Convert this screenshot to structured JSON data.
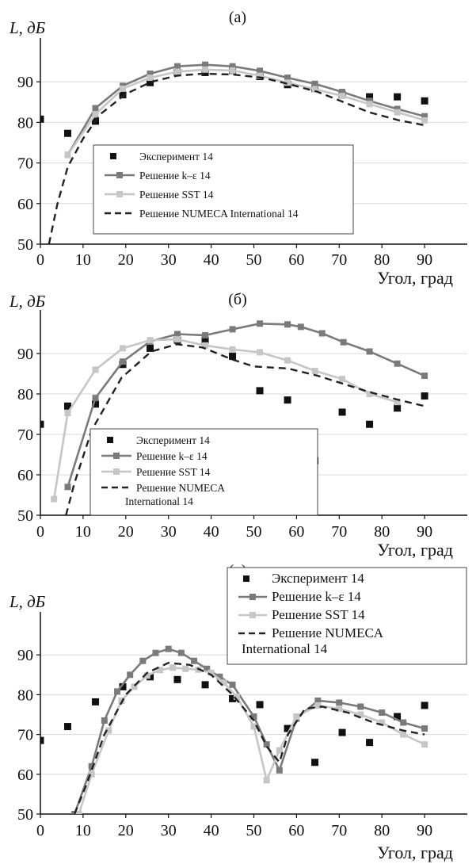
{
  "chart_data": [
    {
      "type": "line",
      "title": "(а)",
      "ylabel": "L, дБ",
      "xlabel": "Угол, град",
      "xlim": [
        0,
        100
      ],
      "ylim": [
        50,
        100
      ],
      "xticks": [
        0,
        10,
        20,
        30,
        40,
        50,
        60,
        70,
        80,
        90
      ],
      "yticks": [
        50,
        60,
        70,
        80,
        90
      ],
      "grid": true,
      "legend_position": "bottom-center",
      "series": [
        {
          "name": "Эксперимент 14",
          "kind": "markers",
          "color": "#111111",
          "x": [
            0,
            6.4,
            12.9,
            19.3,
            25.7,
            32.1,
            38.6,
            45,
            51.4,
            57.9,
            64.3,
            70.7,
            77.1,
            83.6,
            90
          ],
          "y": [
            80.8,
            77.3,
            80.3,
            86.8,
            89.8,
            92.3,
            92.3,
            92.8,
            91.3,
            89.3,
            88.3,
            86.8,
            86.3,
            86.3,
            85.3
          ]
        },
        {
          "name": "Решение k–ε 14",
          "kind": "line-markers",
          "color": "#7a7a7a",
          "x": [
            6.4,
            12.9,
            19.3,
            25.7,
            32.1,
            38.6,
            45,
            51.4,
            57.9,
            64.3,
            70.7,
            77.1,
            83.6,
            90
          ],
          "y": [
            72,
            83.5,
            89,
            92,
            93.8,
            94.2,
            93.8,
            92.7,
            91,
            89.5,
            87.5,
            85.3,
            83.3,
            81.5
          ]
        },
        {
          "name": "Решение SST 14",
          "kind": "line-markers",
          "color": "#c6c6c6",
          "x": [
            6.4,
            12.9,
            19.3,
            25.7,
            32.1,
            38.6,
            45,
            51.4,
            57.9,
            64.3,
            70.7,
            77.1,
            83.6,
            90
          ],
          "y": [
            72,
            82,
            88.3,
            91,
            92.5,
            93,
            92.8,
            91.5,
            89.8,
            88.2,
            86.5,
            84.5,
            82.5,
            80.5
          ]
        },
        {
          "name": "Решение NUMECA International 14",
          "kind": "dashed",
          "color": "#222222",
          "x": [
            2,
            4,
            6.4,
            10,
            14,
            20,
            26,
            32,
            38,
            45,
            52,
            58,
            65,
            71,
            77,
            84,
            90
          ],
          "y": [
            50,
            60,
            69,
            76,
            82,
            87,
            90,
            91.5,
            92,
            91.8,
            91,
            89.5,
            87.5,
            85,
            82.5,
            80.5,
            79.3
          ]
        }
      ]
    },
    {
      "type": "line",
      "title": "(б)",
      "ylabel": "L, дБ",
      "xlabel": "Угол, град",
      "xlim": [
        0,
        100
      ],
      "ylim": [
        50,
        100
      ],
      "xticks": [
        0,
        10,
        20,
        30,
        40,
        50,
        60,
        70,
        80,
        90
      ],
      "yticks": [
        50,
        60,
        70,
        80,
        90
      ],
      "grid": true,
      "legend_position": "bottom-left",
      "series": [
        {
          "name": "Эксперимент 14",
          "kind": "markers",
          "color": "#111111",
          "x": [
            0,
            6.4,
            12.9,
            19.3,
            25.7,
            32.1,
            38.6,
            45,
            51.4,
            57.9,
            64.3,
            70.7,
            77.1,
            83.6,
            90
          ],
          "y": [
            72.5,
            77,
            77.5,
            87.3,
            91.3,
            93.3,
            93.3,
            89.3,
            80.8,
            78.5,
            63.5,
            75.5,
            72.5,
            76.5,
            79.5
          ]
        },
        {
          "name": "Решение k–ε 14",
          "kind": "line-markers",
          "color": "#7a7a7a",
          "x": [
            6.4,
            12.9,
            19.3,
            25.7,
            32.1,
            38.6,
            45,
            51.4,
            57.9,
            61,
            66,
            71,
            77.1,
            83.6,
            90
          ],
          "y": [
            57,
            79,
            88,
            93,
            94.8,
            94.5,
            96,
            97.4,
            97.2,
            96.6,
            95,
            92.8,
            90.5,
            87.5,
            84.5
          ]
        },
        {
          "name": "Решение SST 14",
          "kind": "line-markers",
          "color": "#c6c6c6",
          "x": [
            3.2,
            6.4,
            12.9,
            19.3,
            25.7,
            32.1,
            38.6,
            45,
            51.4,
            57.9,
            64.3,
            70.7,
            77.1,
            83.6
          ],
          "y": [
            54,
            75.3,
            86,
            91.3,
            93.3,
            93.5,
            92,
            91,
            90.3,
            88.3,
            85.7,
            83.7,
            80,
            78
          ]
        },
        {
          "name": "Решение NUMECA International 14",
          "kind": "dashed",
          "color": "#222222",
          "x": [
            6,
            8,
            12,
            19,
            26,
            32,
            38,
            45,
            50,
            58,
            65,
            71,
            77,
            84,
            90
          ],
          "y": [
            50,
            58,
            71,
            84,
            90.5,
            92.3,
            91.5,
            88.5,
            86.8,
            86.3,
            84.5,
            82.5,
            80.5,
            78.5,
            77
          ]
        }
      ]
    },
    {
      "type": "line",
      "title": "(в)",
      "ylabel": "L, дБ",
      "xlabel": "Угол, град",
      "xlim": [
        0,
        100
      ],
      "ylim": [
        50,
        100
      ],
      "xticks": [
        0,
        10,
        20,
        30,
        40,
        50,
        60,
        70,
        80,
        90
      ],
      "yticks": [
        50,
        60,
        70,
        80,
        90
      ],
      "grid": true,
      "legend_position": "top-right",
      "legend_lines": [
        "Эксперимент 14",
        "Решение k–ε 14",
        "Решение SST 14",
        "Решение NUMECA",
        "International 14"
      ],
      "series": [
        {
          "name": "Эксперимент 14",
          "kind": "markers",
          "color": "#111111",
          "x": [
            0,
            6.4,
            12.9,
            19.3,
            25.7,
            32.1,
            38.6,
            45,
            51.4,
            57.9,
            64.3,
            70.7,
            77.1,
            83.6,
            90
          ],
          "y": [
            68.5,
            72,
            78.2,
            82,
            84.5,
            83.8,
            82.5,
            79,
            77.5,
            71.5,
            63,
            70.5,
            68,
            74.5,
            77.3
          ]
        },
        {
          "name": "Решение k–ε 14",
          "kind": "line-markers",
          "color": "#7a7a7a",
          "x": [
            8,
            12,
            15,
            18,
            21,
            24,
            27,
            30,
            33,
            36,
            39,
            42,
            45,
            50,
            53,
            56,
            60,
            65,
            70,
            75,
            80,
            85,
            90
          ],
          "y": [
            50,
            62,
            73.5,
            80.8,
            85,
            88.5,
            90.5,
            91.5,
            90.5,
            88.5,
            86.5,
            84.5,
            82.5,
            74.5,
            67.5,
            61,
            74,
            78.5,
            78,
            77,
            75.5,
            73,
            71.5
          ]
        },
        {
          "name": "Решение SST 14",
          "kind": "line-markers",
          "color": "#c6c6c6",
          "x": [
            9,
            12,
            16,
            19,
            22,
            25,
            28,
            31,
            34,
            37,
            40,
            43,
            46,
            50,
            53,
            56,
            60,
            65,
            70,
            75,
            80,
            85,
            90
          ],
          "y": [
            50,
            60,
            71,
            78.5,
            82,
            84.8,
            86.2,
            86.8,
            86.5,
            86.3,
            85.5,
            83,
            79.5,
            72,
            58.5,
            66,
            74.5,
            77.3,
            76.5,
            75,
            73,
            70,
            67.5
          ]
        },
        {
          "name": "Решение NUMECA International 14",
          "kind": "dashed",
          "color": "#222222",
          "x": [
            8,
            11,
            15,
            20,
            25,
            30,
            35,
            40,
            45,
            50,
            53,
            56,
            58,
            62,
            66,
            72,
            78,
            85,
            90
          ],
          "y": [
            50,
            58,
            70,
            80,
            85.5,
            88,
            87.5,
            85,
            80,
            73.5,
            67,
            63,
            70,
            76.5,
            77,
            75.5,
            73,
            71,
            70
          ]
        }
      ]
    }
  ]
}
